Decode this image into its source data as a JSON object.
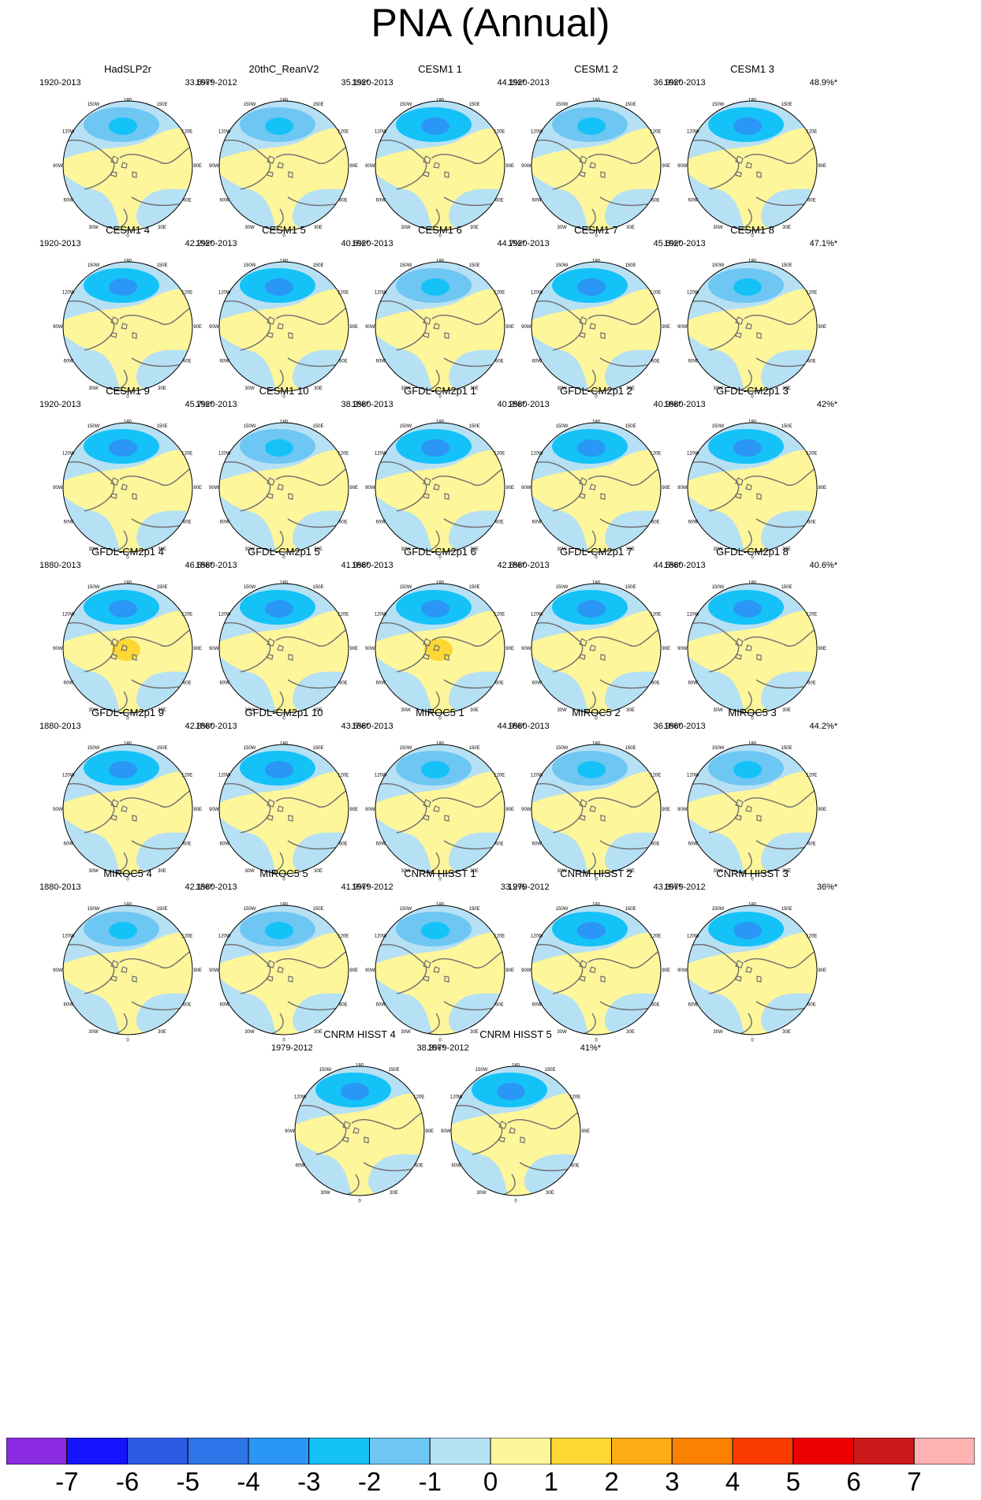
{
  "title": "PNA (Annual)",
  "chart_data": {
    "type": "heatmap",
    "title": "PNA (Annual)",
    "projection": "north polar stereographic",
    "longitude_labels": [
      "180",
      "150W",
      "150E",
      "120W",
      "120E",
      "90W",
      "90E",
      "60W",
      "60E",
      "30W",
      "30E",
      "0"
    ],
    "panels": [
      {
        "name": "HadSLP2r",
        "period": "1920-2013",
        "variance": "33.6%*",
        "low": -2,
        "high": null
      },
      {
        "name": "20thC_ReanV2",
        "period": "1979-2012",
        "variance": "35.1%*",
        "low": -2,
        "high": null
      },
      {
        "name": "CESM1 1",
        "period": "1920-2013",
        "variance": "44.1%*",
        "low": -3,
        "high": null
      },
      {
        "name": "CESM1 2",
        "period": "1920-2013",
        "variance": "36.9%*",
        "low": -2,
        "high": 1
      },
      {
        "name": "CESM1 3",
        "period": "1920-2013",
        "variance": "48.9%*",
        "low": -3,
        "high": 1
      },
      {
        "name": "CESM1 4",
        "period": "1920-2013",
        "variance": "42.2%*",
        "low": -3,
        "high": 1
      },
      {
        "name": "CESM1 5",
        "period": "1920-2013",
        "variance": "40.6%*",
        "low": -3,
        "high": 1
      },
      {
        "name": "CESM1 6",
        "period": "1920-2013",
        "variance": "44.7%*",
        "low": -2,
        "high": 1
      },
      {
        "name": "CESM1 7",
        "period": "1920-2013",
        "variance": "45.6%*",
        "low": -3,
        "high": 1
      },
      {
        "name": "CESM1 8",
        "period": "1920-2013",
        "variance": "47.1%*",
        "low": -2,
        "high": 1
      },
      {
        "name": "CESM1 9",
        "period": "1920-2013",
        "variance": "45.7%*",
        "low": -3,
        "high": 1
      },
      {
        "name": "CESM1 10",
        "period": "1920-2013",
        "variance": "38.2%*",
        "low": -2,
        "high": null
      },
      {
        "name": "GFDL-CM2p1 1",
        "period": "1880-2013",
        "variance": "40.2%*",
        "low": -3,
        "high": 1
      },
      {
        "name": "GFDL-CM2p1 2",
        "period": "1880-2013",
        "variance": "40.9%*",
        "low": -3,
        "high": 1
      },
      {
        "name": "GFDL-CM2p1 3",
        "period": "1880-2013",
        "variance": "42%*",
        "low": -3,
        "high": 1
      },
      {
        "name": "GFDL-CM2p1 4",
        "period": "1880-2013",
        "variance": "46.6%*",
        "low": -3,
        "high": 2
      },
      {
        "name": "GFDL-CM2p1 5",
        "period": "1880-2013",
        "variance": "41.9%*",
        "low": -3,
        "high": 1
      },
      {
        "name": "GFDL-CM2p1 6",
        "period": "1880-2013",
        "variance": "42.6%*",
        "low": -3,
        "high": 2
      },
      {
        "name": "GFDL-CM2p1 7",
        "period": "1880-2013",
        "variance": "44.5%*",
        "low": -3,
        "high": 1
      },
      {
        "name": "GFDL-CM2p1 8",
        "period": "1880-2013",
        "variance": "40.6%*",
        "low": -3,
        "high": 1
      },
      {
        "name": "GFDL-CM2p1 9",
        "period": "1880-2013",
        "variance": "42.8%*",
        "low": -3,
        "high": 1
      },
      {
        "name": "GFDL-CM2p1 10",
        "period": "1880-2013",
        "variance": "43.5%*",
        "low": -3,
        "high": 1
      },
      {
        "name": "MIROC5 1",
        "period": "1880-2013",
        "variance": "44.9%*",
        "low": -2,
        "high": null
      },
      {
        "name": "MIROC5 2",
        "period": "1880-2013",
        "variance": "36.9%*",
        "low": -2,
        "high": null
      },
      {
        "name": "MIROC5 3",
        "period": "1880-2013",
        "variance": "44.2%*",
        "low": -2,
        "high": null
      },
      {
        "name": "MIROC5 4",
        "period": "1880-2013",
        "variance": "42.1%*",
        "low": -2,
        "high": null
      },
      {
        "name": "MIROC5 5",
        "period": "1880-2013",
        "variance": "41.9%*",
        "low": -2,
        "high": null
      },
      {
        "name": "CNRM HISST 1",
        "period": "1979-2012",
        "variance": "33.2%",
        "low": -2,
        "high": null
      },
      {
        "name": "CNRM HISST 2",
        "period": "1979-2012",
        "variance": "43.8%*",
        "low": -3,
        "high": 1
      },
      {
        "name": "CNRM HISST 3",
        "period": "1979-2012",
        "variance": "36%*",
        "low": -3,
        "high": null
      },
      {
        "name": "CNRM HISST 4",
        "period": "1979-2012",
        "variance": "38.3%*",
        "low": -3,
        "high": 1
      },
      {
        "name": "CNRM HISST 5",
        "period": "1979-2012",
        "variance": "41%*",
        "low": -3,
        "high": null
      }
    ],
    "colorbar": {
      "ticks": [
        "-7",
        "-6",
        "-5",
        "-4",
        "-3",
        "-2",
        "-1",
        "0",
        "1",
        "2",
        "3",
        "4",
        "5",
        "6",
        "7"
      ],
      "colors": [
        "#8a2be2",
        "#1414ff",
        "#2e5be6",
        "#2f76eb",
        "#2a96f5",
        "#14c2f8",
        "#6ec6f2",
        "#b6e0f4",
        "#fdf69a",
        "#fdd834",
        "#fcae14",
        "#fa8200",
        "#fa3c00",
        "#ee0000",
        "#cc1a1a",
        "#ffb3b3"
      ]
    },
    "map_colors": {
      "ocean_default": "#b6e0f4",
      "positive_default": "#fdf69a",
      "coast": "#6e6e6e"
    }
  }
}
